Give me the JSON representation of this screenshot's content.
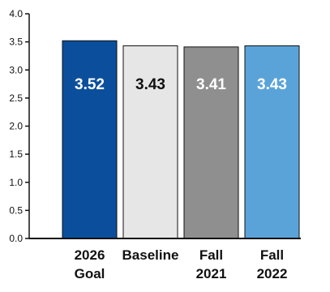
{
  "chart_data": {
    "type": "bar",
    "categories": [
      [
        "2026",
        "Goal"
      ],
      [
        "Baseline"
      ],
      [
        "Fall",
        "2021"
      ],
      [
        "Fall",
        "2022"
      ]
    ],
    "values": [
      3.52,
      3.43,
      3.41,
      3.43
    ],
    "data_labels": [
      "3.52",
      "3.43",
      "3.41",
      "3.43"
    ],
    "bar_colors": [
      "#0b4f9c",
      "#e6e6e6",
      "#8f8f8f",
      "#5aa3d8"
    ],
    "label_colors": [
      "#ffffff",
      "#111111",
      "#ffffff",
      "#ffffff"
    ],
    "ylim": [
      0,
      4.0
    ],
    "y_ticks": [
      "0.0",
      "0.5",
      "1.0",
      "1.5",
      "2.0",
      "2.5",
      "3.0",
      "3.5",
      "4.0"
    ],
    "title": "",
    "xlabel": "",
    "ylabel": "",
    "grid": false,
    "legend": "none"
  }
}
